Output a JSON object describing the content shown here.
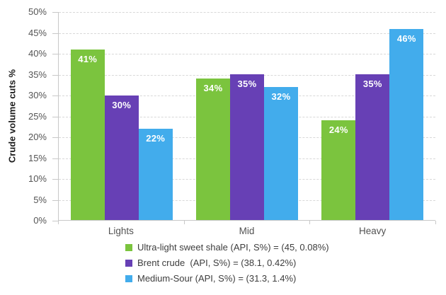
{
  "chart_data": {
    "type": "bar",
    "title": "",
    "xlabel": "",
    "ylabel": "Crude volume cuts %",
    "categories": [
      "Lights",
      "Mid",
      "Heavy"
    ],
    "series": [
      {
        "name": "Ultra-light sweet shale (API, S%) = (45, 0.08%)",
        "color": "#7bc43e",
        "values": [
          41,
          34,
          24
        ],
        "labels": [
          "41%",
          "34%",
          "24%"
        ]
      },
      {
        "name": "Brent crude  (API, S%) = (38.1, 0.42%)",
        "color": "#6740b5",
        "values": [
          30,
          35,
          35
        ],
        "labels": [
          "30%",
          "35%",
          "35%"
        ]
      },
      {
        "name": "Medium-Sour (API, S%) = (31.3, 1.4%)",
        "color": "#42acec",
        "values": [
          22,
          32,
          46
        ],
        "labels": [
          "22%",
          "32%",
          "46%"
        ]
      }
    ],
    "ylim": [
      0,
      50
    ],
    "ytick_step": 5,
    "yticks": [
      "0%",
      "5%",
      "10%",
      "15%",
      "20%",
      "25%",
      "30%",
      "35%",
      "40%",
      "45%",
      "50%"
    ],
    "grid": "horizontal-dashed",
    "legend_position": "bottom-left"
  },
  "colors": {
    "background": "#ffffff",
    "gridline": "#d8d8d8",
    "axis": "#c8c8c8",
    "tick_text": "#555555",
    "value_label_text": "#ffffff"
  }
}
